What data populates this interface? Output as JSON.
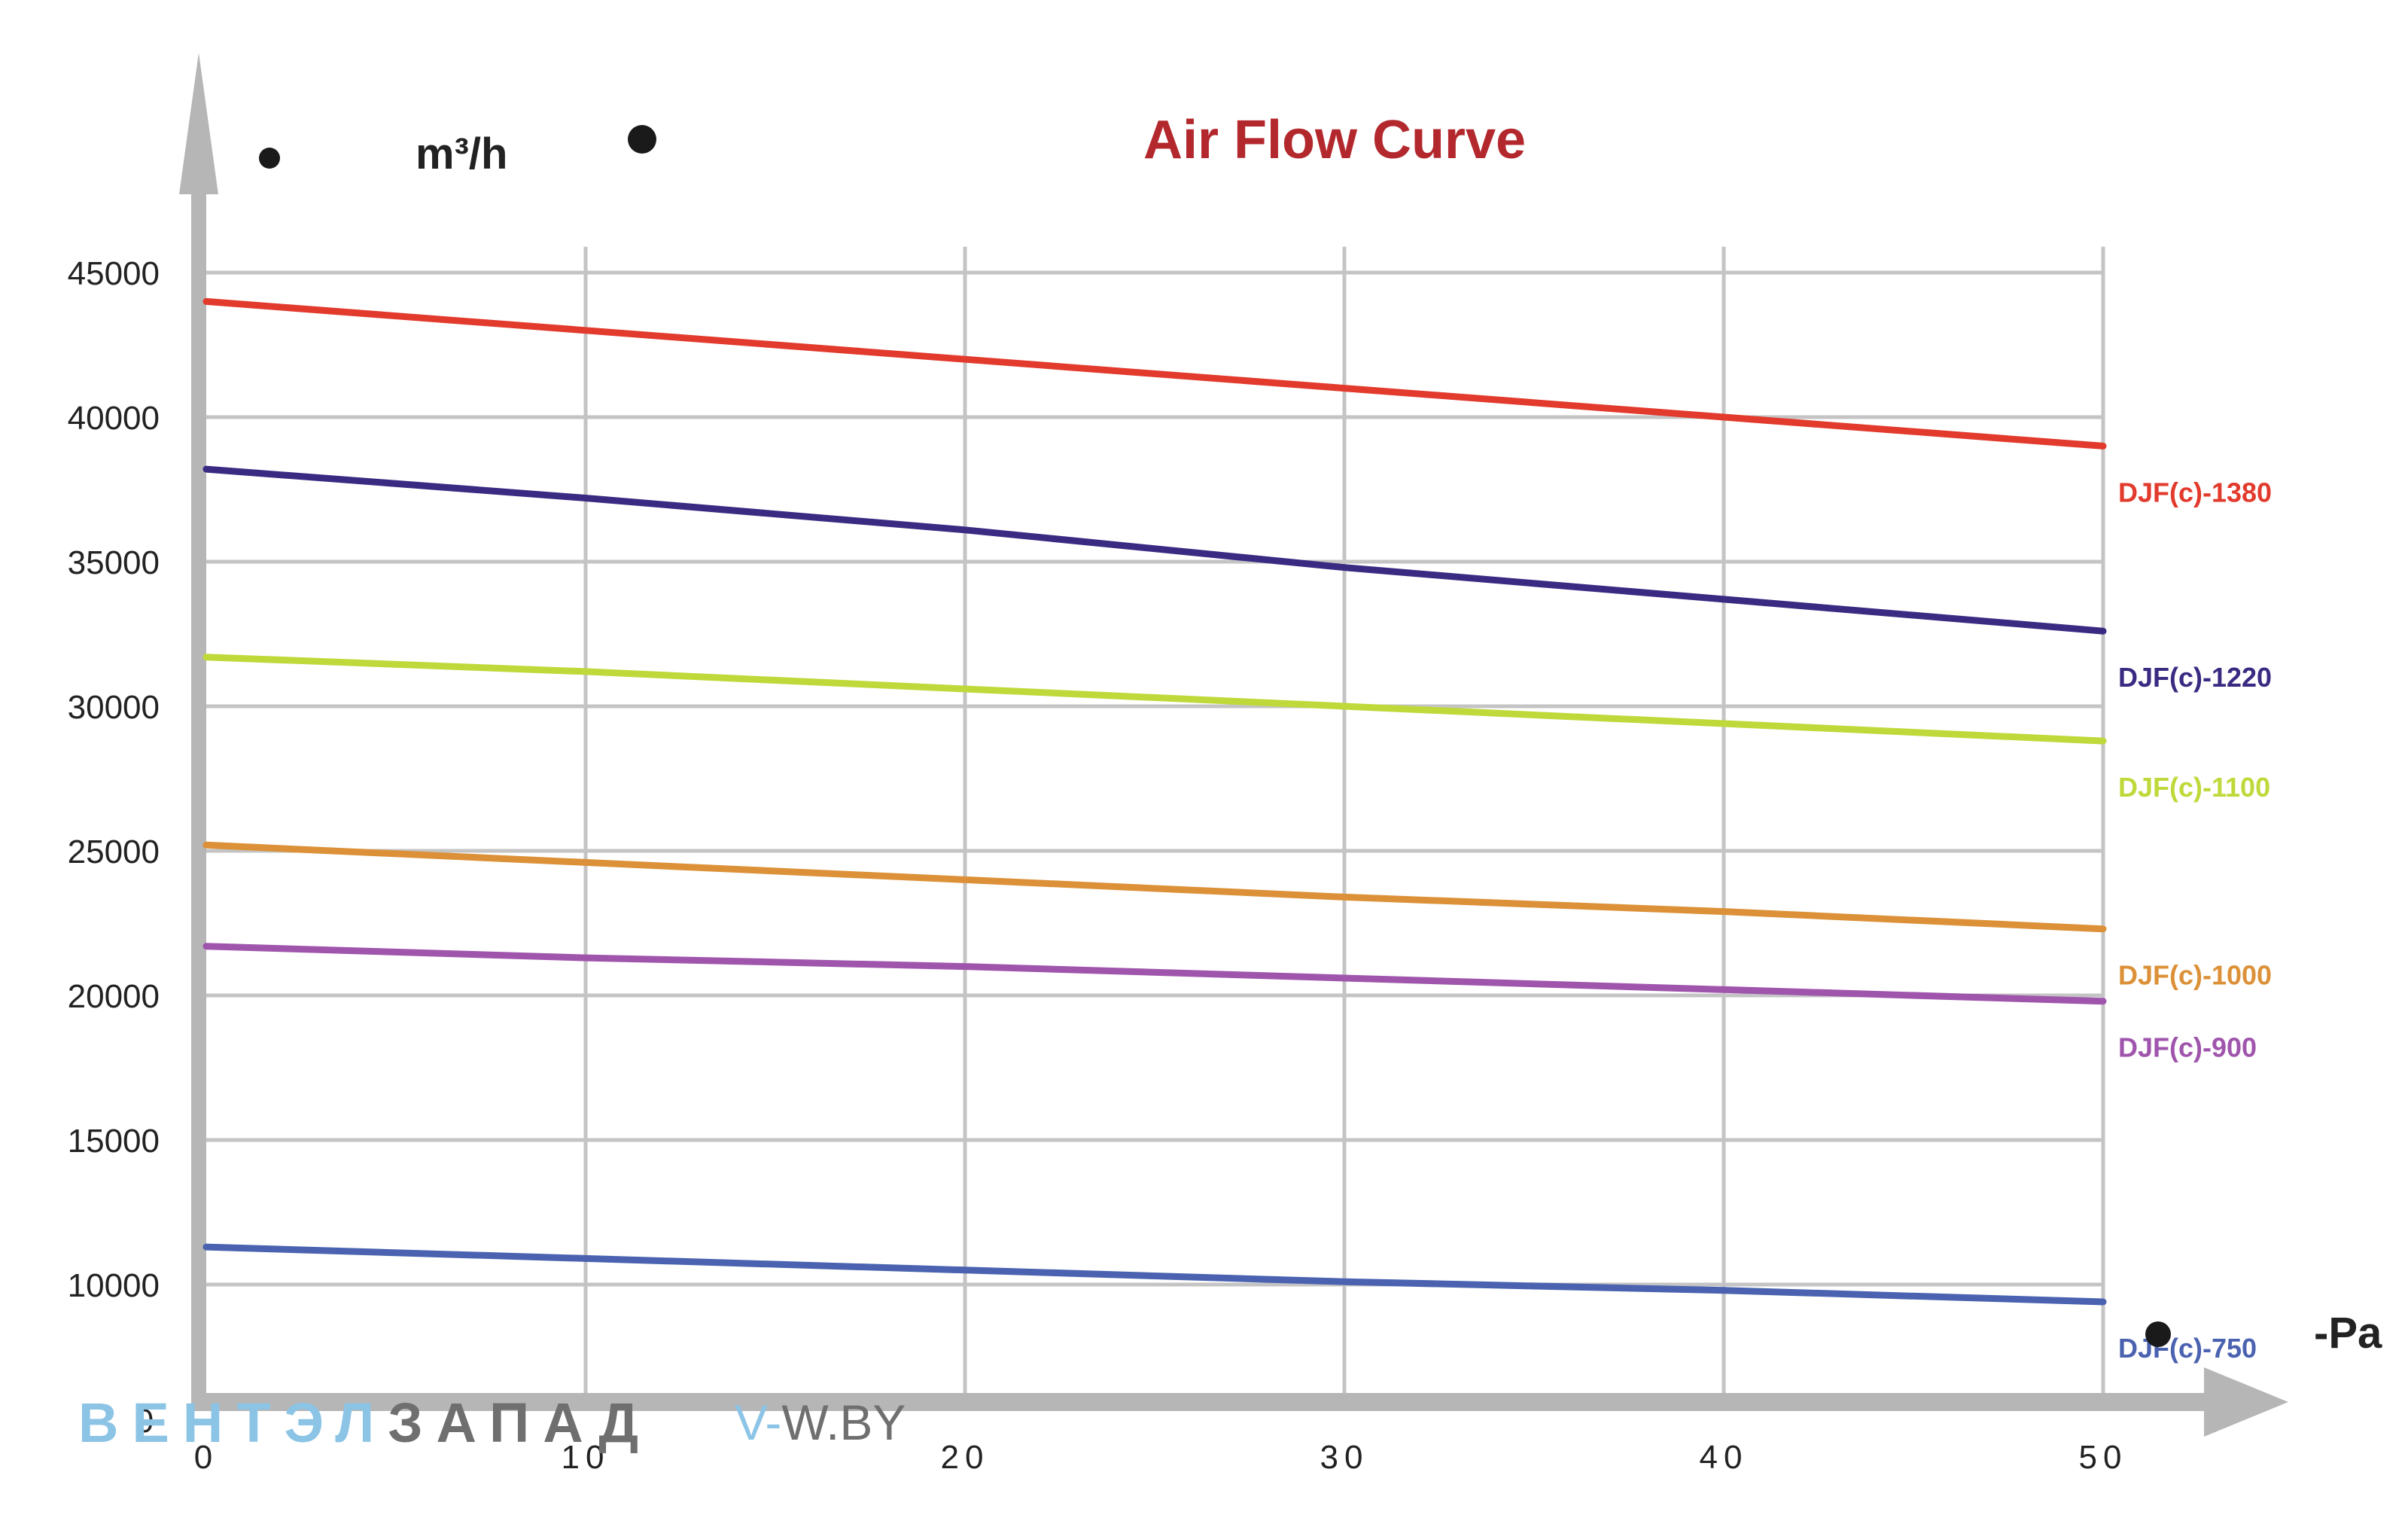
{
  "colors": {
    "grid": "#c4c4c4",
    "axis": "#b6b6b6",
    "title": "#b3282d",
    "watermark_light": "#8cc4e6",
    "watermark_dark": "#6f6f6f"
  },
  "watermark": {
    "part1": "ВЕНТЭЛ",
    "part2": "ЗАПАД",
    "site_prefix": "V-",
    "site_rest": "W.BY"
  },
  "chart_data": {
    "type": "line",
    "title": "Air Flow Curve",
    "ylabel": "m³/h",
    "xlabel": "-Pa",
    "xlim": [
      0,
      50
    ],
    "ylim": [
      6000,
      46000
    ],
    "grid": true,
    "y_ticks": [
      {
        "value": 45000,
        "label": "45000"
      },
      {
        "value": 40000,
        "label": "40000"
      },
      {
        "value": 35000,
        "label": "35000"
      },
      {
        "value": 30000,
        "label": "30000"
      },
      {
        "value": 25000,
        "label": "25000"
      },
      {
        "value": 20000,
        "label": "20000"
      },
      {
        "value": 15000,
        "label": "15000"
      },
      {
        "value": 10000,
        "label": "10000"
      }
    ],
    "y_origin_label": "0",
    "x_ticks": [
      {
        "value": 0,
        "label": "0"
      },
      {
        "value": 10,
        "label": "10"
      },
      {
        "value": 20,
        "label": "20"
      },
      {
        "value": 30,
        "label": "30"
      },
      {
        "value": 40,
        "label": "40"
      },
      {
        "value": 50,
        "label": "50"
      }
    ],
    "series": [
      {
        "name": "DJF(c)-1380",
        "color": "#e23a2c",
        "x": [
          0,
          10,
          20,
          30,
          40,
          50
        ],
        "values": [
          44000,
          43000,
          42000,
          41000,
          40000,
          39000
        ]
      },
      {
        "name": "DJF(c)-1220",
        "color": "#3b2a82",
        "x": [
          0,
          10,
          20,
          30,
          40,
          50
        ],
        "values": [
          38200,
          37200,
          36100,
          34800,
          33700,
          32600
        ]
      },
      {
        "name": "DJF(c)-1100",
        "color": "#bfd93a",
        "x": [
          0,
          10,
          20,
          30,
          40,
          50
        ],
        "values": [
          31700,
          31200,
          30600,
          30000,
          29400,
          28800
        ]
      },
      {
        "name": "DJF(c)-1000",
        "color": "#dc9138",
        "x": [
          0,
          10,
          20,
          30,
          40,
          50
        ],
        "values": [
          25200,
          24600,
          24000,
          23400,
          22900,
          22300
        ]
      },
      {
        "name": "DJF(c)-900",
        "color": "#a055ad",
        "x": [
          0,
          10,
          20,
          30,
          40,
          50
        ],
        "values": [
          21700,
          21300,
          21000,
          20600,
          20200,
          19800
        ]
      },
      {
        "name": "DJF(c)-750",
        "color": "#4a62b0",
        "x": [
          0,
          10,
          20,
          30,
          40,
          50
        ],
        "values": [
          11300,
          10900,
          10500,
          10100,
          9800,
          9400
        ]
      }
    ]
  }
}
